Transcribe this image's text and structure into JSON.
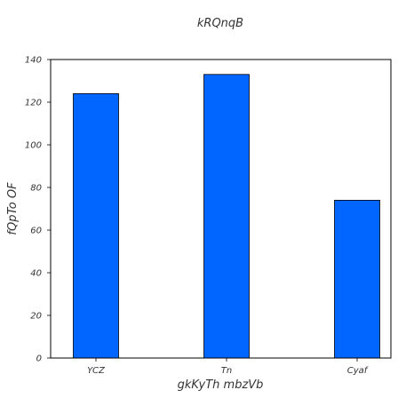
{
  "chart_data": {
    "type": "bar",
    "title": "kRQnqB",
    "xlabel": "gkKyTh  mbzVb",
    "ylabel": "fQpTo OF",
    "categories": [
      "YCZ",
      "Tn",
      "Cyaf"
    ],
    "values": [
      124,
      133,
      74
    ],
    "ylim": [
      0,
      140
    ],
    "yticks": [
      "0",
      "20",
      "40",
      "60",
      "80",
      "100",
      "120",
      "140"
    ],
    "grid": false,
    "bar_color": "#0066ff",
    "edge_color": "#000000"
  }
}
